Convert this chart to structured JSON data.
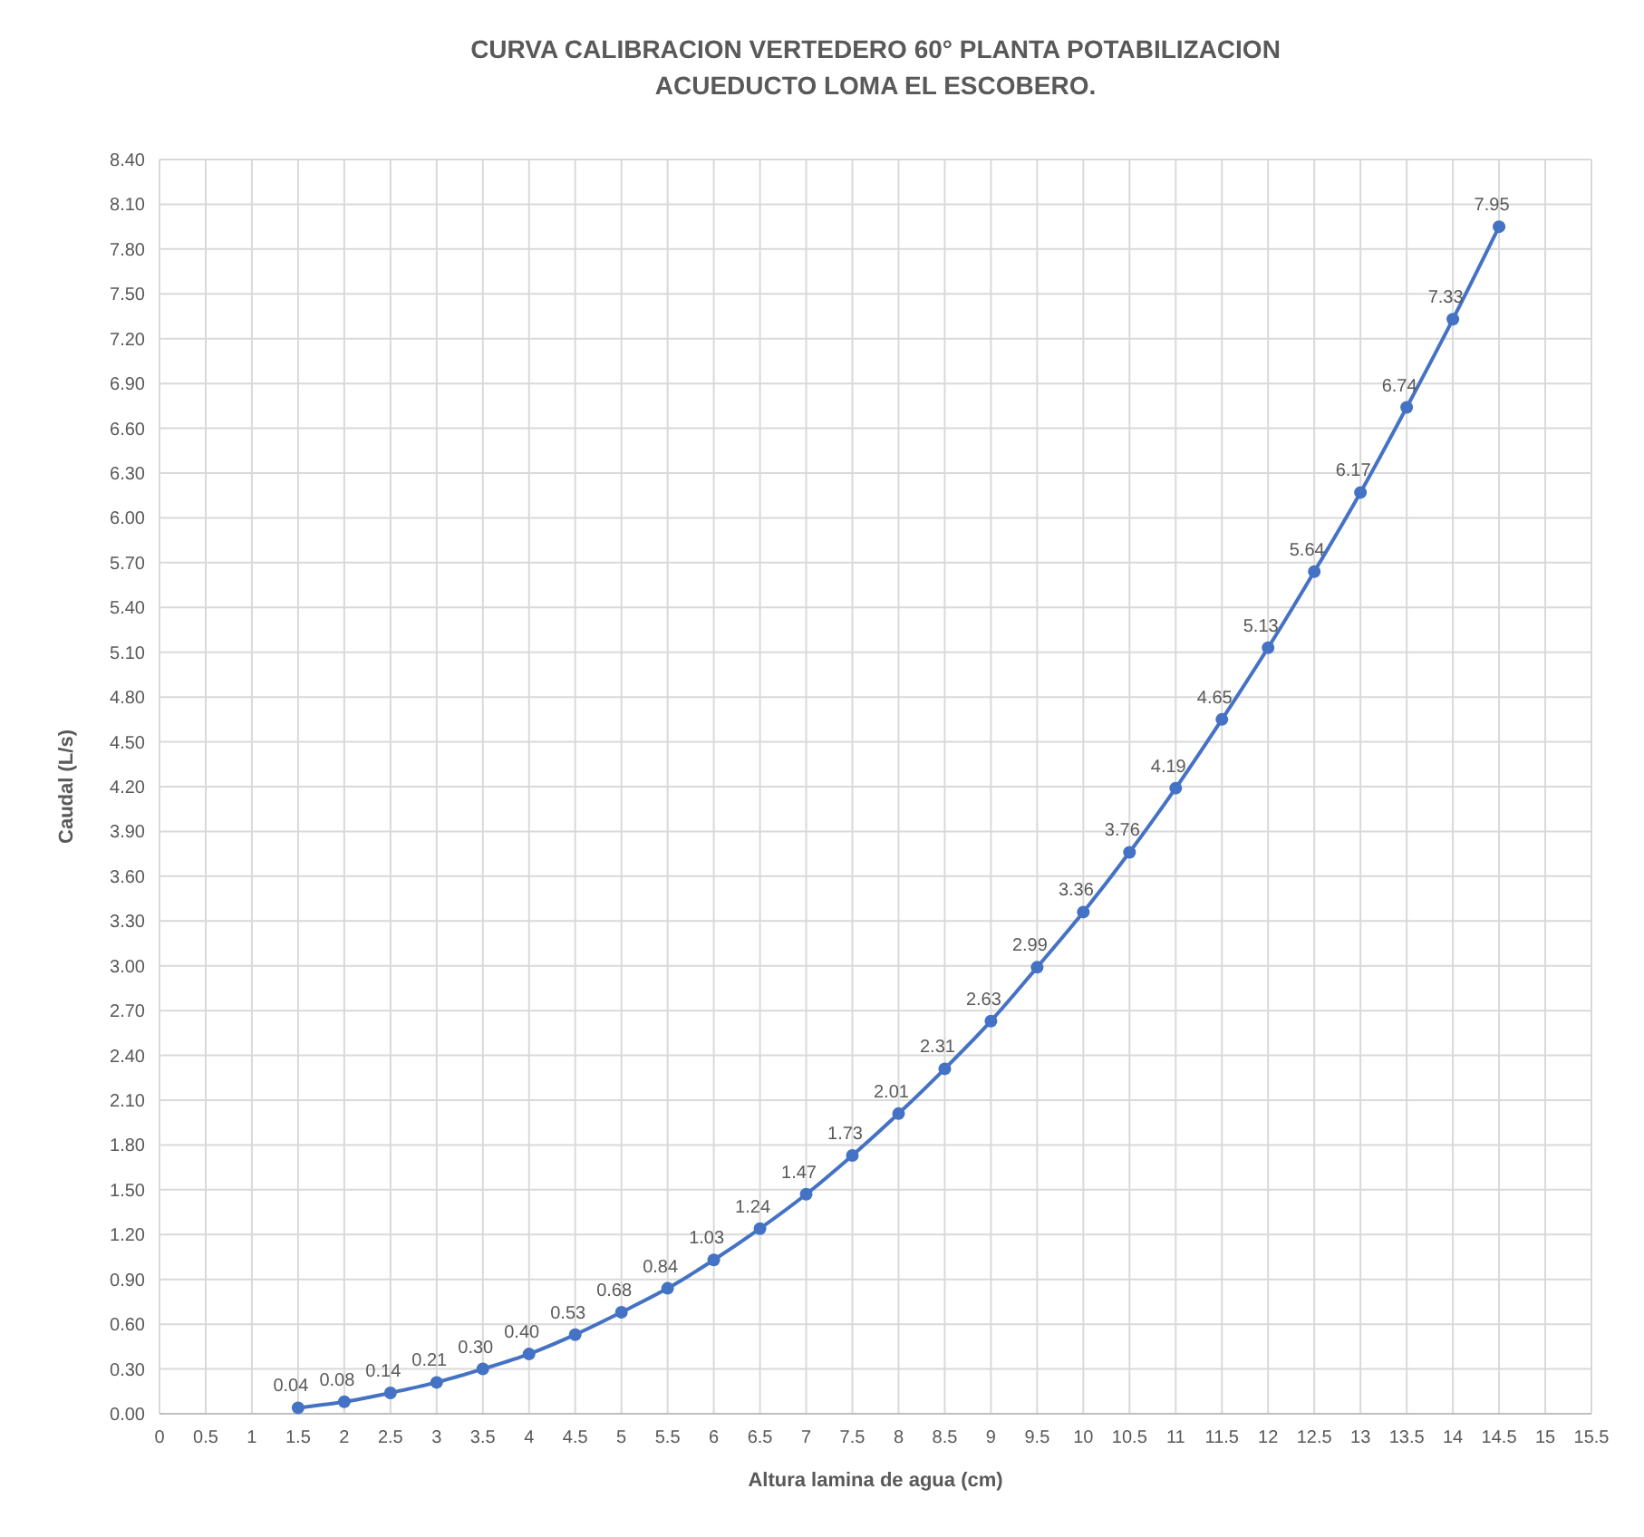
{
  "chart_data": {
    "type": "line",
    "title": "CURVA CALIBRACION VERTEDERO 60° PLANTA POTABILIZACION\nACUEDUCTO LOMA EL ESCOBERO.",
    "xlabel": "Altura lamina de agua (cm)",
    "ylabel": "Caudal (L/s)",
    "x": [
      1.5,
      2,
      2.5,
      3,
      3.5,
      4,
      4.5,
      5,
      5.5,
      6,
      6.5,
      7,
      7.5,
      8,
      8.5,
      9,
      9.5,
      10,
      10.5,
      11,
      11.5,
      12,
      12.5,
      13,
      13.5,
      14,
      14.5
    ],
    "series": [
      {
        "color": "#4472c4",
        "values": [
          0.04,
          0.08,
          0.14,
          0.21,
          0.3,
          0.4,
          0.53,
          0.68,
          0.84,
          1.03,
          1.24,
          1.47,
          1.73,
          2.01,
          2.31,
          2.63,
          2.99,
          3.36,
          3.76,
          4.19,
          4.65,
          5.13,
          5.64,
          6.17,
          6.74,
          7.33,
          7.95
        ],
        "value_labels": [
          "0.04",
          "0.08",
          "0.14",
          "0.21",
          "0.30",
          "0.40",
          "0.53",
          "0.68",
          "0.84",
          "1.03",
          "1.24",
          "1.47",
          "1.73",
          "2.01",
          "2.31",
          "2.63",
          "2.99",
          "3.36",
          "3.76",
          "4.19",
          "4.65",
          "5.13",
          "5.64",
          "6.17",
          "6.74",
          "7.33",
          "7.95"
        ]
      }
    ],
    "xlim": [
      0,
      15.5
    ],
    "xticks": [
      0,
      0.5,
      1,
      1.5,
      2,
      2.5,
      3,
      3.5,
      4,
      4.5,
      5,
      5.5,
      6,
      6.5,
      7,
      7.5,
      8,
      8.5,
      9,
      9.5,
      10,
      10.5,
      11,
      11.5,
      12,
      12.5,
      13,
      13.5,
      14,
      14.5,
      15,
      15.5
    ],
    "ylim": [
      0,
      8.4
    ],
    "yticks": [
      {
        "value": 0,
        "label": "0.00"
      },
      {
        "value": 0.3,
        "label": "0.30"
      },
      {
        "value": 0.6,
        "label": "0.60"
      },
      {
        "value": 0.9,
        "label": "0.90"
      },
      {
        "value": 1.2,
        "label": "1.20"
      },
      {
        "value": 1.5,
        "label": "1.50"
      },
      {
        "value": 1.8,
        "label": "1.80"
      },
      {
        "value": 2.1,
        "label": "2.10"
      },
      {
        "value": 2.4,
        "label": "2.40"
      },
      {
        "value": 2.7,
        "label": "2.70"
      },
      {
        "value": 3,
        "label": "3.00"
      },
      {
        "value": 3.3,
        "label": "3.30"
      },
      {
        "value": 3.6,
        "label": "3.60"
      },
      {
        "value": 3.9,
        "label": "3.90"
      },
      {
        "value": 4.2,
        "label": "4.20"
      },
      {
        "value": 4.5,
        "label": "4.50"
      },
      {
        "value": 4.8,
        "label": "4.80"
      },
      {
        "value": 5.1,
        "label": "5.10"
      },
      {
        "value": 5.4,
        "label": "5.40"
      },
      {
        "value": 5.7,
        "label": "5.70"
      },
      {
        "value": 6,
        "label": "6.00"
      },
      {
        "value": 6.3,
        "label": "6.30"
      },
      {
        "value": 6.6,
        "label": "6.60"
      },
      {
        "value": 6.9,
        "label": "6.90"
      },
      {
        "value": 7.2,
        "label": "7.20"
      },
      {
        "value": 7.5,
        "label": "7.50"
      },
      {
        "value": 7.8,
        "label": "7.80"
      },
      {
        "value": 8.1,
        "label": "8.10"
      },
      {
        "value": 8.4,
        "label": "8.40"
      }
    ],
    "grid": true,
    "marker": "circle",
    "line_style": "solid"
  }
}
